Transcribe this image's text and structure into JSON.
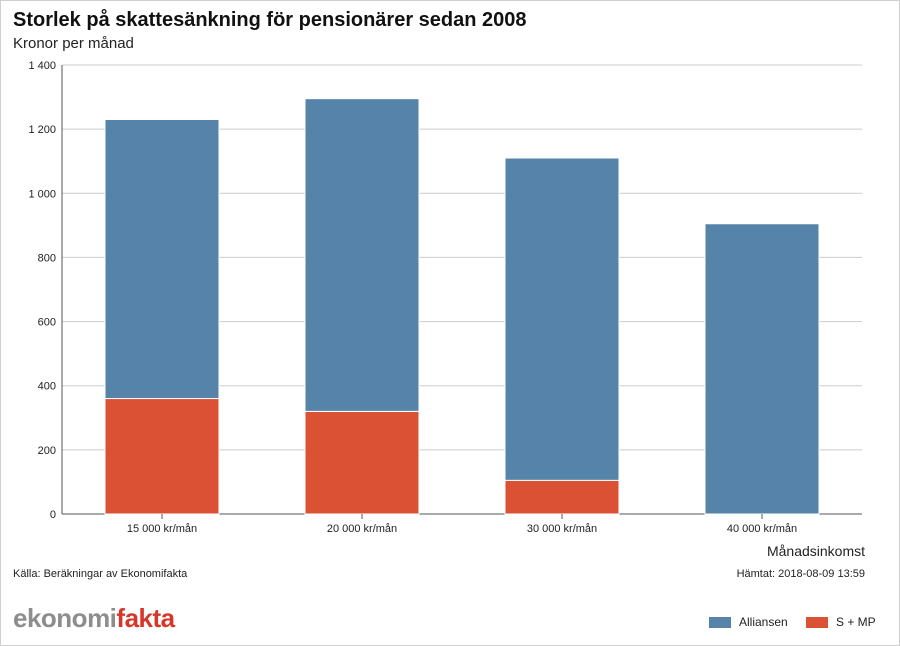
{
  "header": {
    "title": "Storlek på skattesänkning för pensionärer sedan 2008",
    "subtitle": "Kronor per månad"
  },
  "footer": {
    "source": "Källa: Beräkningar av Ekonomifakta",
    "fetched": "Hämtat: 2018-08-09 13:59",
    "logo_part1": "ekonomi",
    "logo_part2": "fakta"
  },
  "colors": {
    "alliansen": "#5583aa",
    "smp": "#db5133",
    "grid": "#cccccc",
    "axis": "#555555"
  },
  "chart_data": {
    "type": "bar",
    "stacked": true,
    "title": "Storlek på skattesänkning för pensionärer sedan 2008",
    "ylabel": "Kronor per månad",
    "xlabel": "Månadsinkomst",
    "categories": [
      "15 000 kr/mån",
      "20 000 kr/mån",
      "30 000 kr/mån",
      "40 000 kr/mån"
    ],
    "ylim": [
      0,
      1400
    ],
    "yticks": [
      0,
      200,
      400,
      600,
      800,
      1000,
      1200,
      1400
    ],
    "ytick_labels": [
      "0",
      "200",
      "400",
      "600",
      "800",
      "1 000",
      "1 200",
      "1 400"
    ],
    "grid": true,
    "legend_position": "bottom-right",
    "series": [
      {
        "name": "S + MP",
        "values": [
          360,
          320,
          105,
          0
        ]
      },
      {
        "name": "Alliansen",
        "values": [
          870,
          975,
          1005,
          905
        ]
      }
    ]
  }
}
